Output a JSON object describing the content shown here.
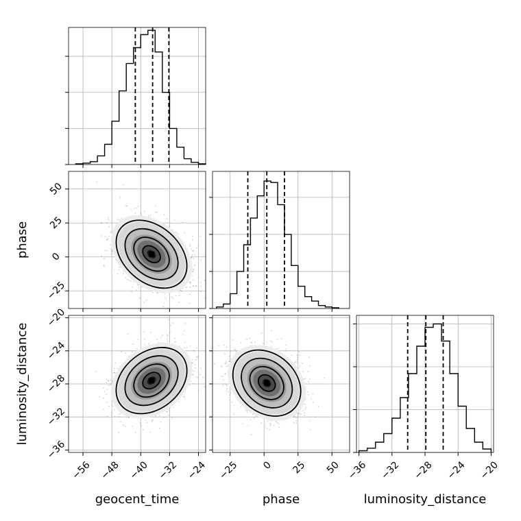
{
  "chart_data": {
    "type": "corner",
    "parameters": [
      "geocent_time",
      "phase",
      "luminosity_distance"
    ],
    "grid": true,
    "colors": {
      "line": "#000000",
      "grid": "#b0b0b0",
      "points": "#777777"
    },
    "axes": {
      "geocent_time": {
        "range": [
          -60,
          -22
        ],
        "ticks": [
          -56,
          -48,
          -40,
          -32,
          -24
        ]
      },
      "phase": {
        "range": [
          -38,
          63
        ],
        "ticks": [
          -25,
          0,
          25,
          50
        ]
      },
      "luminosity_distance": {
        "range": [
          -36.3,
          -19.7
        ],
        "ticks": [
          -36,
          -32,
          -28,
          -24,
          -20
        ]
      }
    },
    "marginals": [
      {
        "parameter": "geocent_time",
        "quantiles": [
          -41.5,
          -36.7,
          -32.2
        ],
        "bins": [
          -58.0,
          -56.0,
          -54.0,
          -52.0,
          -50.0,
          -48.0,
          -46.0,
          -44.0,
          -42.0,
          -40.0,
          -38.0,
          -36.0,
          -34.0,
          -32.0,
          -30.0,
          -28.0,
          -26.0,
          -24.0,
          -22.0
        ],
        "counts": [
          1,
          2,
          4,
          12,
          28,
          60,
          102,
          140,
          162,
          180,
          186,
          156,
          100,
          50,
          24,
          8,
          3,
          1
        ],
        "ymax": 190,
        "ticks": [
          0,
          50,
          100,
          150
        ]
      },
      {
        "parameter": "phase",
        "quantiles": [
          -12.0,
          2.0,
          15.0
        ],
        "bins": [
          -35,
          -30,
          -25,
          -20,
          -15,
          -10,
          -5,
          0,
          5,
          10,
          15,
          20,
          25,
          30,
          35,
          40,
          45,
          50,
          55
        ],
        "counts": [
          2,
          6,
          20,
          50,
          86,
          122,
          152,
          172,
          170,
          140,
          100,
          58,
          30,
          16,
          10,
          4,
          2,
          1
        ],
        "ymax": 185,
        "ticks": [
          0,
          50,
          100,
          150
        ]
      },
      {
        "parameter": "luminosity_distance",
        "quantiles": [
          -30.1,
          -27.9,
          -25.8
        ],
        "bins": [
          -36.0,
          -35.0,
          -34.0,
          -33.0,
          -32.0,
          -31.0,
          -30.0,
          -29.0,
          -28.0,
          -27.0,
          -26.0,
          -25.0,
          -24.0,
          -23.0,
          -22.0,
          -21.0,
          -20.0
        ],
        "counts": [
          2,
          5,
          12,
          22,
          40,
          64,
          92,
          124,
          146,
          150,
          130,
          92,
          54,
          28,
          12,
          4
        ],
        "ymax": 160,
        "ticks": [
          0,
          50,
          100,
          150
        ]
      }
    ],
    "joint": [
      {
        "x": "geocent_time",
        "y": "phase",
        "center": [
          -37,
          2
        ],
        "sigma": [
          4.9,
          12.5
        ],
        "rho": -0.35,
        "scatter_count": 1700,
        "seed": 11,
        "contour_levels": [
          0.5,
          1.0,
          1.5,
          2.0
        ]
      },
      {
        "x": "geocent_time",
        "y": "luminosity_distance",
        "center": [
          -37,
          -27.6
        ],
        "sigma": [
          4.9,
          2.0
        ],
        "rho": 0.3,
        "scatter_count": 1700,
        "seed": 23,
        "contour_levels": [
          0.5,
          1.0,
          1.5,
          2.0
        ]
      },
      {
        "x": "phase",
        "y": "luminosity_distance",
        "center": [
          2,
          -27.9
        ],
        "sigma": [
          12.5,
          2.0
        ],
        "rho": -0.25,
        "scatter_count": 1700,
        "seed": 37,
        "contour_levels": [
          0.5,
          1.0,
          1.5,
          2.0
        ]
      }
    ]
  }
}
